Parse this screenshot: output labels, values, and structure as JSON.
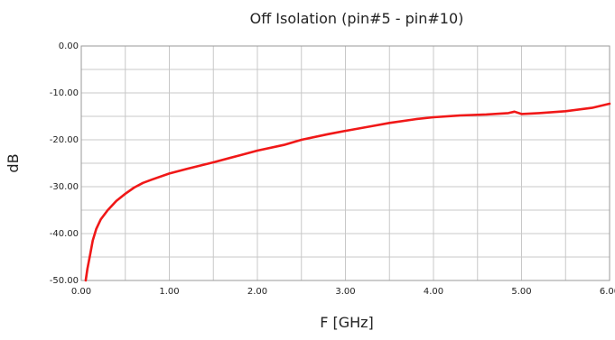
{
  "chart_data": {
    "type": "line",
    "title": "Off Isolation (pin#5 - pin#10)",
    "xlabel": "F [GHz]",
    "ylabel": "dB",
    "xlim": [
      0,
      6
    ],
    "ylim": [
      -50,
      0
    ],
    "x_ticks": [
      "0.00",
      "1.00",
      "2.00",
      "3.00",
      "4.00",
      "5.00",
      "6.00"
    ],
    "y_ticks": [
      "0.00",
      "-10.00",
      "-20.00",
      "-30.00",
      "-40.00",
      "-50.00"
    ],
    "grid": true,
    "series": [
      {
        "color": "#f01818",
        "x": [
          0.05,
          0.07,
          0.1,
          0.13,
          0.17,
          0.22,
          0.3,
          0.4,
          0.5,
          0.6,
          0.7,
          0.8,
          1.0,
          1.2,
          1.5,
          1.8,
          2.0,
          2.3,
          2.5,
          2.8,
          3.0,
          3.3,
          3.5,
          3.8,
          4.0,
          4.3,
          4.6,
          4.85,
          4.92,
          5.0,
          5.2,
          5.5,
          5.8,
          6.0
        ],
        "y": [
          -50.0,
          -47.5,
          -44.5,
          -41.5,
          -39.0,
          -37.0,
          -35.0,
          -33.0,
          -31.5,
          -30.2,
          -29.2,
          -28.5,
          -27.2,
          -26.2,
          -24.8,
          -23.3,
          -22.3,
          -21.1,
          -20.0,
          -18.8,
          -18.1,
          -17.1,
          -16.4,
          -15.6,
          -15.2,
          -14.8,
          -14.6,
          -14.3,
          -14.0,
          -14.5,
          -14.3,
          -13.9,
          -13.2,
          -12.3
        ]
      }
    ]
  }
}
